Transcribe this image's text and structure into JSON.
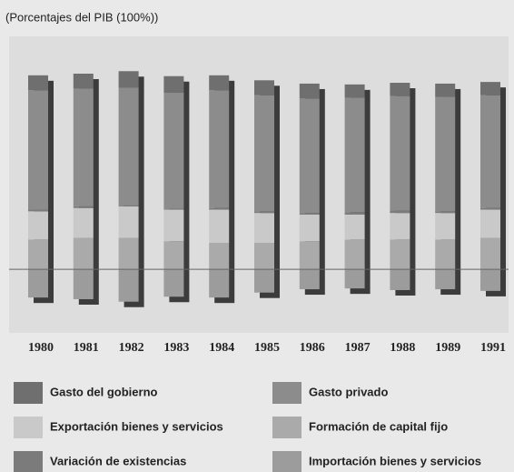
{
  "chart_data": {
    "type": "stacked_bar",
    "title": "(Porcentajes del PIB (100%))",
    "categories": [
      "1980",
      "1981",
      "1982",
      "1983",
      "1984",
      "1985",
      "1986",
      "1987",
      "1988",
      "1989",
      "1991"
    ],
    "series": [
      {
        "name": "Gasto del gobierno",
        "color": "#6f6f6f",
        "values": [
          9,
          9,
          10,
          10,
          9,
          9,
          9,
          8,
          8,
          8,
          8
        ]
      },
      {
        "name": "Gasto privado",
        "color": "#8c8c8c",
        "values": [
          72,
          71,
          71,
          70,
          71,
          70,
          69,
          69,
          69,
          69,
          68
        ]
      },
      {
        "name": "Exportación bienes y servicios",
        "color": "#c9c9c9",
        "values": [
          17,
          18,
          19,
          19,
          20,
          18,
          16,
          15,
          16,
          16,
          17
        ]
      },
      {
        "name": "Formación de capital fijo",
        "color": "#aaaaaa",
        "values": [
          18,
          19,
          19,
          17,
          16,
          16,
          17,
          18,
          18,
          18,
          19
        ]
      },
      {
        "name": "Variación de existencias",
        "color": "#7b7b7b",
        "values": [
          1,
          1,
          0.5,
          0.5,
          1,
          1,
          1,
          1.5,
          1.5,
          1,
          1
        ]
      },
      {
        "name": "Importación bienes y servicios",
        "color": "#9c9c9c",
        "values": [
          -17,
          -18,
          -19.5,
          -16.5,
          -17,
          -14,
          -12,
          -11.5,
          -12.5,
          -12,
          -13
        ]
      }
    ],
    "ylim": [
      -35,
      135
    ]
  }
}
